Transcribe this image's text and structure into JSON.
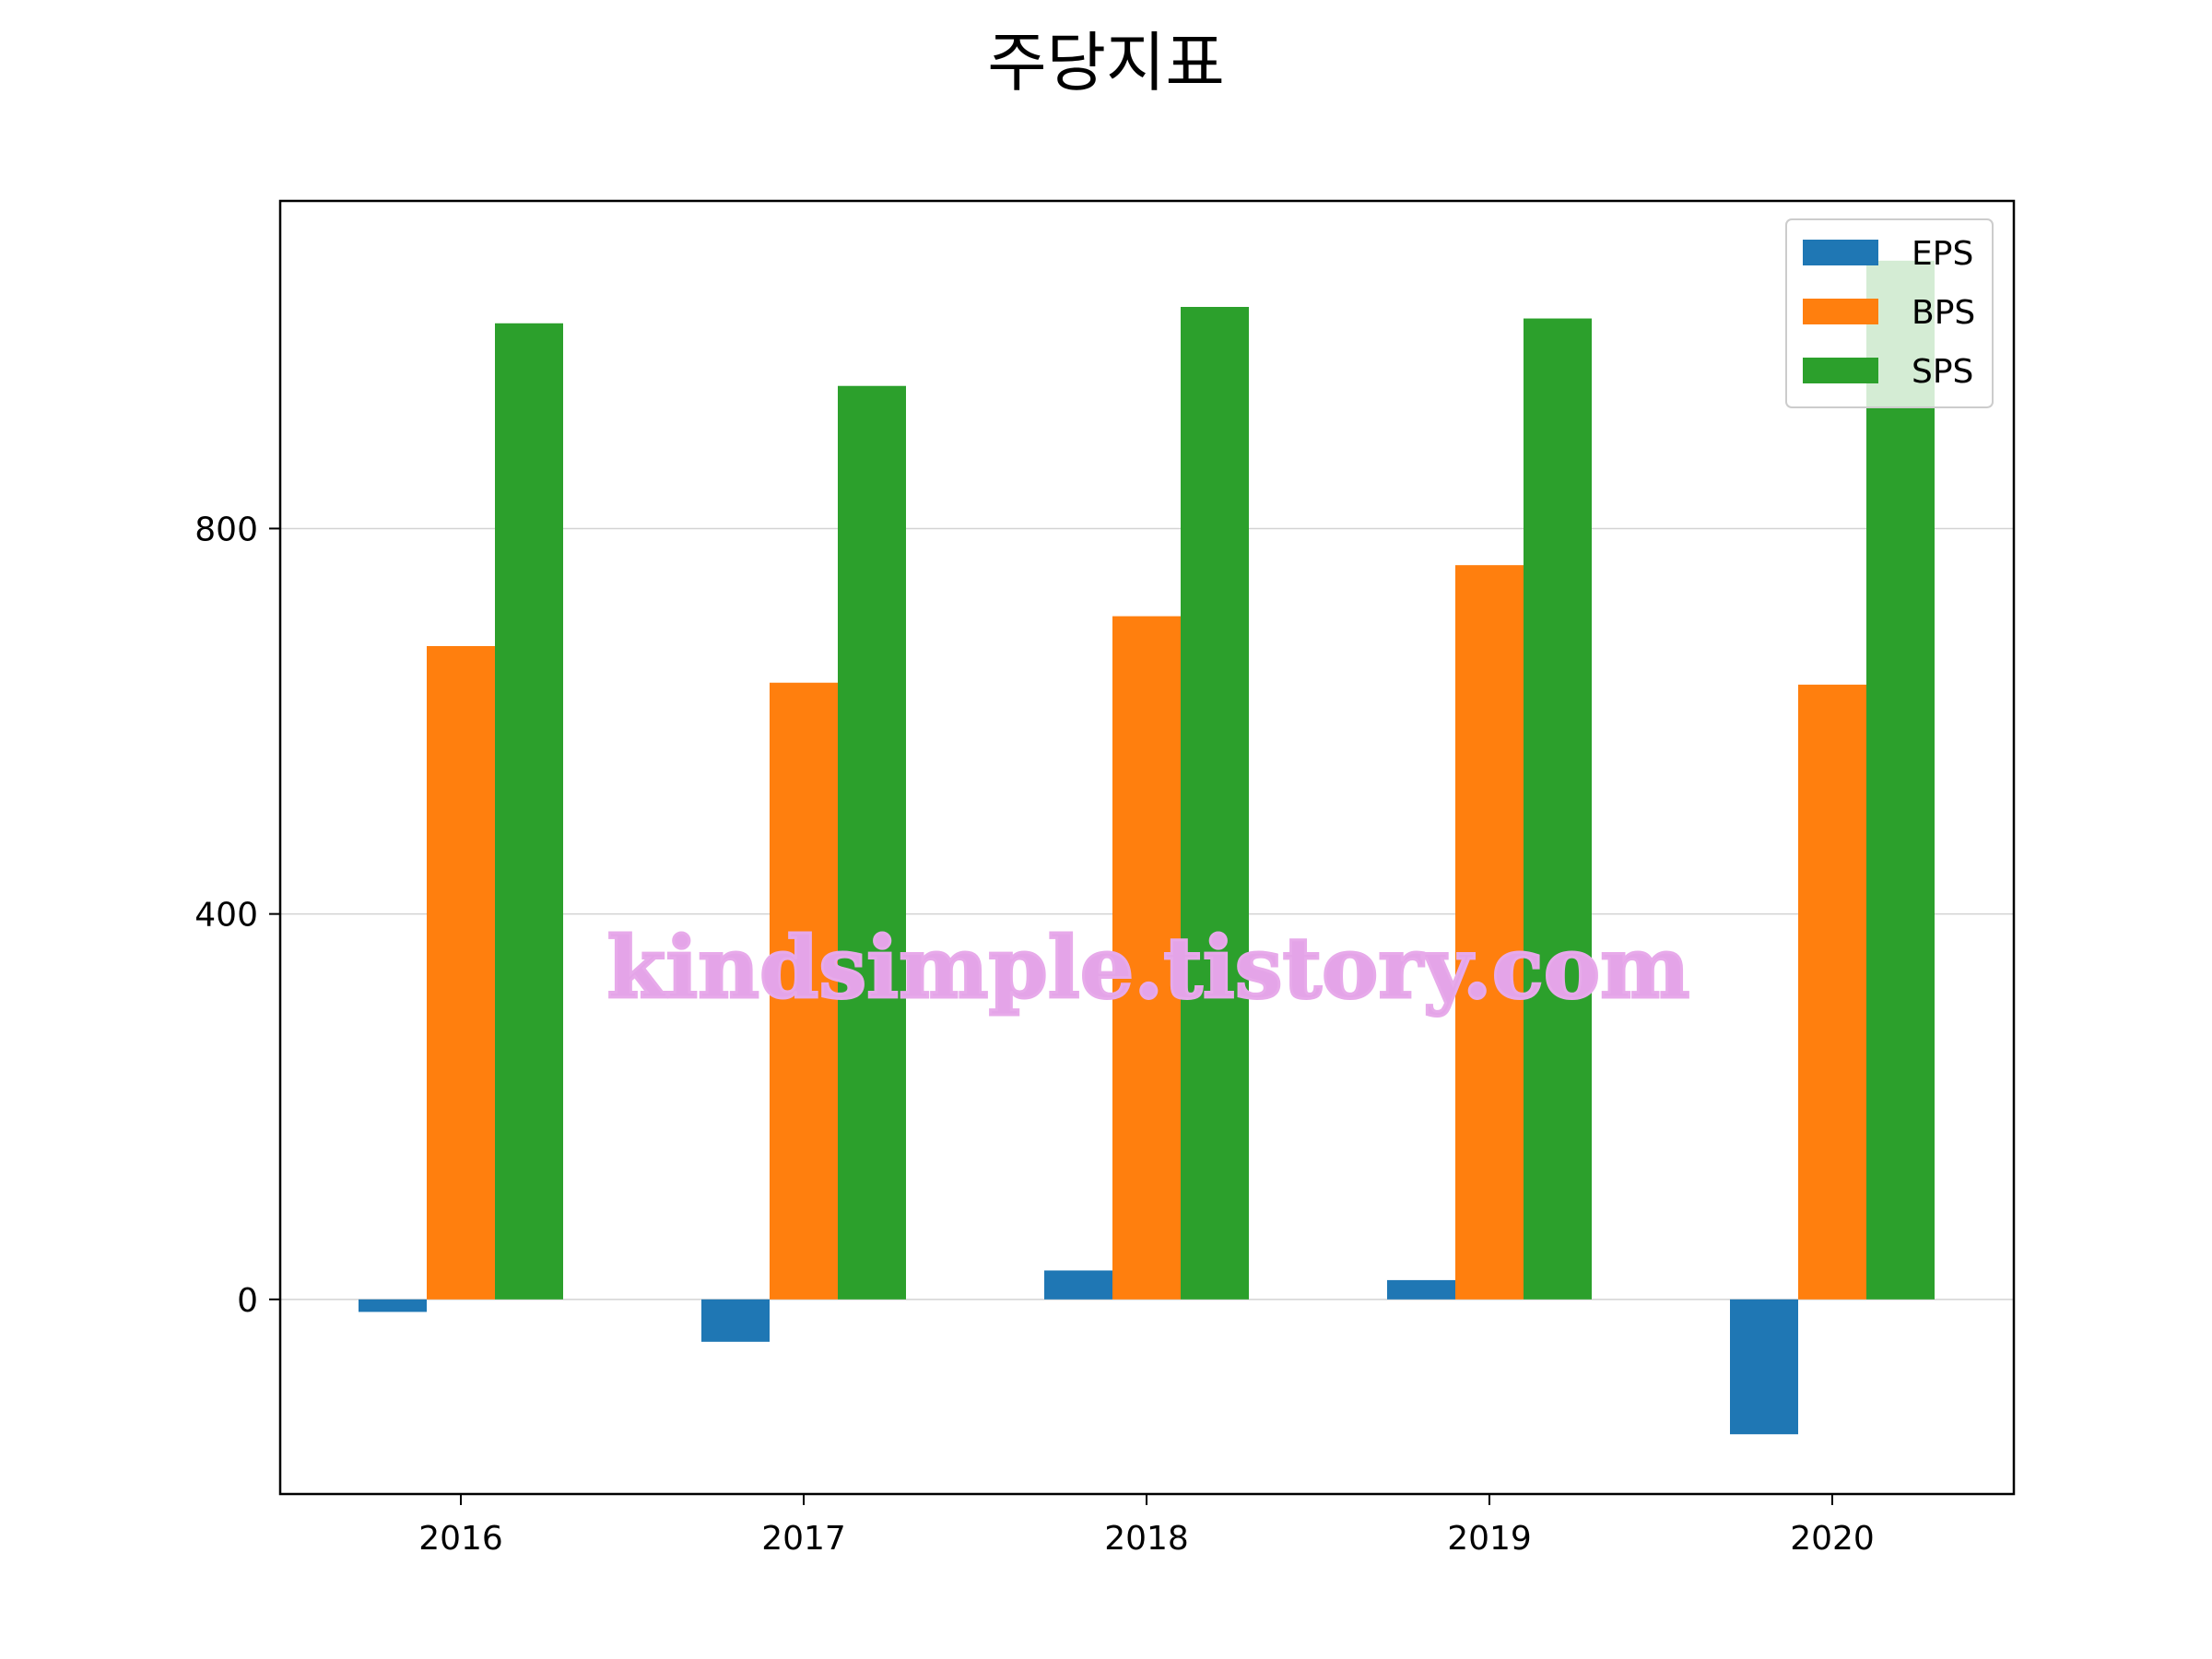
{
  "chart_data": {
    "type": "bar",
    "title": "주당지표",
    "xlabel": "",
    "ylabel": "",
    "categories": [
      "2016",
      "2017",
      "2018",
      "2019",
      "2020"
    ],
    "series": [
      {
        "name": "EPS",
        "color": "#1f77b4",
        "values": [
          -13,
          -44,
          30,
          20,
          -140
        ]
      },
      {
        "name": "BPS",
        "color": "#ff7f0e",
        "values": [
          678,
          640,
          709,
          762,
          638
        ]
      },
      {
        "name": "SPS",
        "color": "#2ca02c",
        "values": [
          1013,
          948,
          1030,
          1018,
          1078
        ]
      }
    ],
    "ylim": [
      -202,
      1140
    ],
    "yticks": [
      0,
      400,
      800
    ],
    "ytick_labels": [
      "0",
      "400",
      "800"
    ],
    "grid": {
      "y": true,
      "x": false,
      "color": "#d3d3d3"
    },
    "legend": {
      "position": "top-right",
      "entries": [
        "EPS",
        "BPS",
        "SPS"
      ]
    }
  },
  "watermark": {
    "text": "kindsimple.tistory.com"
  }
}
